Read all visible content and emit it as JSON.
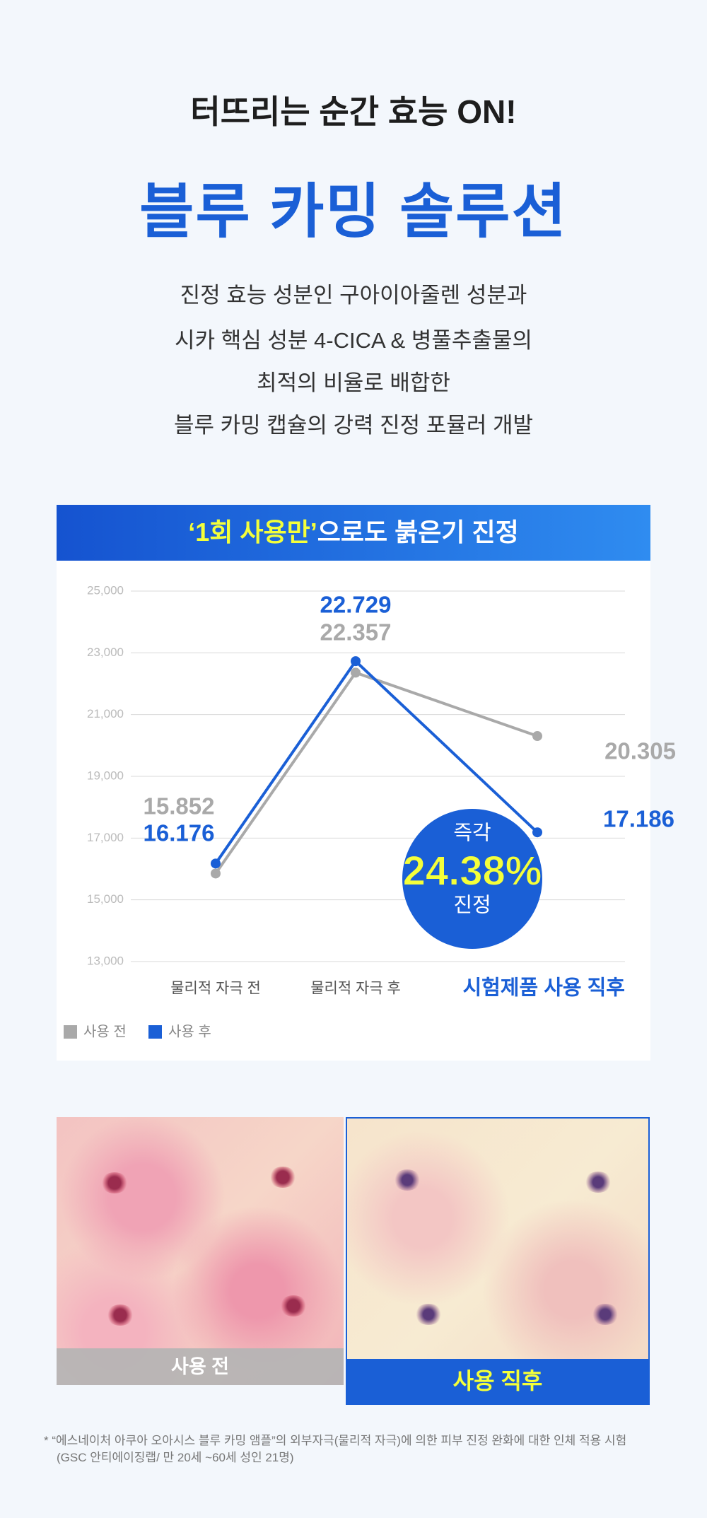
{
  "header": {
    "headline": "터뜨리는 순간 효능 ON!",
    "title": "블루 카밍 솔루션",
    "body": [
      "진정 효능 성분인 구아이아줄렌 성분과",
      "시카 핵심 성분 4-CICA & 병풀추출물의",
      "최적의 비율로 배합한",
      "블루 카밍 캡슐의 강력 진정 포뮬러 개발"
    ]
  },
  "chart_data": {
    "type": "line",
    "title_highlight": "‘1회 사용만’",
    "title_rest": "으로도 붉은기 진정",
    "categories": [
      "물리적 자극 전",
      "물리적 자극 후",
      "시험제품 사용 직후"
    ],
    "series": [
      {
        "name": "사용 전",
        "color": "#a9a9a9",
        "values": [
          15852,
          22357,
          20305
        ],
        "value_labels": [
          "15.852",
          "22.357",
          "20.305"
        ]
      },
      {
        "name": "사용 후",
        "color": "#1a5fd6",
        "values": [
          16176,
          22729,
          17186
        ],
        "value_labels": [
          "16.176",
          "22.729",
          "17.186"
        ]
      }
    ],
    "ylim": [
      13000,
      25000
    ],
    "yticks": [
      {
        "value": 13000,
        "label": "13,000"
      },
      {
        "value": 15000,
        "label": "15,000"
      },
      {
        "value": 17000,
        "label": "17,000"
      },
      {
        "value": 19000,
        "label": "19,000"
      },
      {
        "value": 21000,
        "label": "21,000"
      },
      {
        "value": 23000,
        "label": "23,000"
      },
      {
        "value": 25000,
        "label": "25,000"
      }
    ],
    "grid": true,
    "legend": "bottom-left",
    "badge": [
      "즉각",
      "24.38%",
      "진정"
    ]
  },
  "comparison": {
    "before": "사용 전",
    "after": "사용 직후"
  },
  "footnote": [
    "* “에스네이처 아쿠아 오아시스 블루 카밍 앰플”의 외부자극(물리적 자극)에 의한 피부 진정 완화에 대한 인체 적용 시험",
    "(GSC 안티에이징랩/ 만 20세 ~60세 성인 21명)"
  ]
}
